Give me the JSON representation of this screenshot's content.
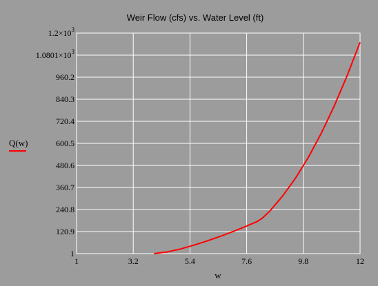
{
  "chart_data": {
    "type": "line",
    "title": "Weir Flow (cfs) vs. Water Level (ft)",
    "xlabel": "w",
    "ylabel": "Q(w)",
    "xlim": [
      1,
      12
    ],
    "ylim": [
      1,
      1200
    ],
    "x_ticks": [
      "1",
      "3.2",
      "5.4",
      "7.6",
      "9.8",
      "12"
    ],
    "y_ticks": [
      {
        "base": "1.2×10",
        "exp": "3"
      },
      {
        "base": "1.0801×10",
        "exp": "3"
      },
      {
        "base": "960.2",
        "exp": ""
      },
      {
        "base": "840.3",
        "exp": ""
      },
      {
        "base": "720.4",
        "exp": ""
      },
      {
        "base": "600.5",
        "exp": ""
      },
      {
        "base": "480.6",
        "exp": ""
      },
      {
        "base": "360.7",
        "exp": ""
      },
      {
        "base": "240.8",
        "exp": ""
      },
      {
        "base": "120.9",
        "exp": ""
      },
      {
        "base": "1",
        "exp": ""
      }
    ],
    "grid": true,
    "series": [
      {
        "name": "Q(w)",
        "color": "#ff0000",
        "x": [
          4.0,
          4.5,
          5.0,
          5.5,
          6.0,
          6.5,
          7.0,
          7.5,
          8.0,
          8.2,
          8.5,
          9.0,
          9.5,
          10.0,
          10.5,
          11.0,
          11.5,
          12.0
        ],
        "y": [
          1,
          10,
          25,
          45,
          67,
          91,
          117,
          145,
          175,
          193,
          232,
          315,
          412,
          526,
          657,
          804,
          969,
          1150
        ]
      }
    ]
  }
}
